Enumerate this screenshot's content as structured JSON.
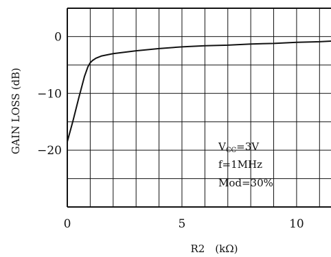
{
  "chart_data": {
    "type": "line",
    "title": "",
    "xlabel": "R2　(kΩ)",
    "ylabel": "GAIN LOSS (dB)",
    "xlim": [
      0,
      11.5
    ],
    "ylim": [
      -30,
      5
    ],
    "x_ticks": [
      0,
      5,
      10
    ],
    "x_tick_labels": [
      "0",
      "5",
      "10"
    ],
    "y_ticks": [
      0,
      -10,
      -20
    ],
    "y_tick_labels": [
      "0",
      "−10",
      "−20"
    ],
    "grid": true,
    "series": [
      {
        "x": [
          0,
          0.25,
          0.5,
          0.75,
          0.9,
          1.0,
          1.1,
          1.25,
          1.5,
          2.0,
          3.0,
          4.0,
          5.0,
          6.0,
          7.0,
          8.0,
          9.0,
          10.0,
          11.0,
          11.5
        ],
        "y": [
          -18.5,
          -14.8,
          -10.8,
          -7.0,
          -5.3,
          -4.6,
          -4.2,
          -3.8,
          -3.4,
          -3.0,
          -2.5,
          -2.1,
          -1.8,
          -1.6,
          -1.5,
          -1.3,
          -1.2,
          -1.0,
          -0.9,
          -0.8
        ]
      }
    ],
    "annotations": {
      "vcc_prefix": "V",
      "vcc_sub": "CC",
      "vcc_value": "=3V",
      "freq": "f=1MHz",
      "mod": "Mod=30%"
    },
    "colors": {
      "line": "#111111",
      "grid": "#111111",
      "background": "#ffffff"
    }
  }
}
